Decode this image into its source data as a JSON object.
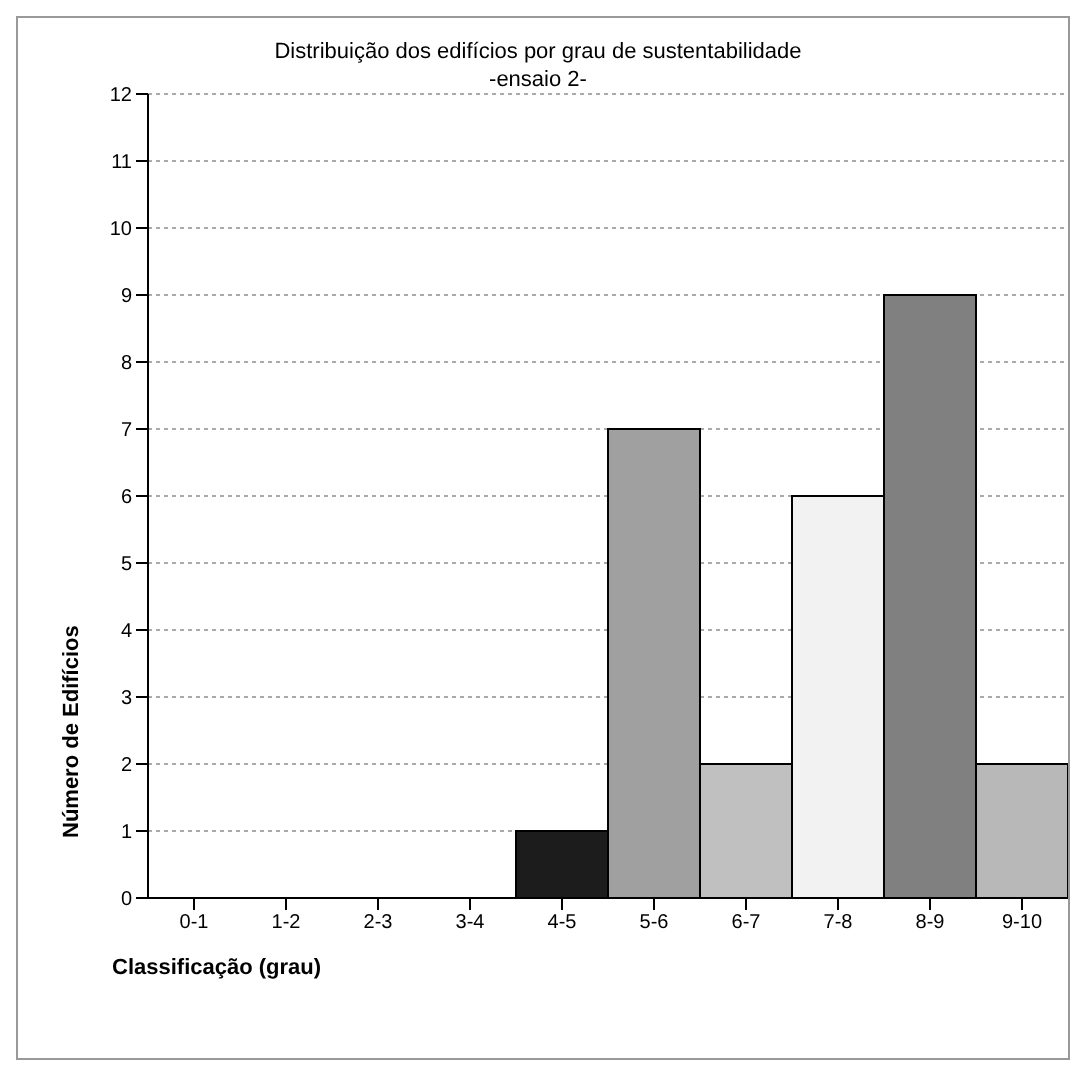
{
  "chart_data": {
    "type": "bar",
    "title": "Distribuição dos edifícios por grau de sustentabilidade",
    "subtitle": "-ensaio 2-",
    "xlabel": "Classificação (grau)",
    "ylabel": "Número de Edifícios",
    "categories": [
      "0-1",
      "1-2",
      "2-3",
      "3-4",
      "4-5",
      "5-6",
      "6-7",
      "7-8",
      "8-9",
      "9-10"
    ],
    "values": [
      0,
      0,
      0,
      0,
      1,
      7,
      2,
      6,
      9,
      2
    ],
    "colors": [
      "#c0c0c0",
      "#c0c0c0",
      "#c0c0c0",
      "#c0c0c0",
      "#1c1c1c",
      "#a0a0a0",
      "#c0c0c0",
      "#f2f2f2",
      "#808080",
      "#b8b8b8"
    ],
    "ylim": [
      0,
      12
    ],
    "yticks": [
      0,
      1,
      2,
      3,
      4,
      5,
      6,
      7,
      8,
      9,
      10,
      11,
      12
    ],
    "grid": "y"
  }
}
